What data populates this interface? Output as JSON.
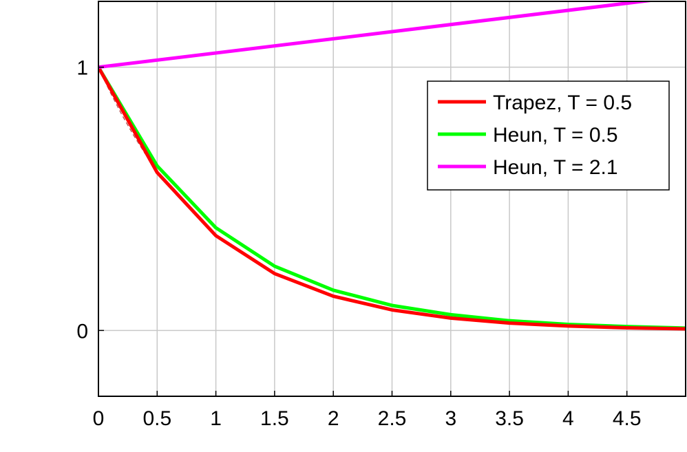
{
  "chart_data": {
    "type": "line",
    "xlabel": "",
    "ylabel": "",
    "xlim": [
      0,
      5
    ],
    "ylim": [
      -0.25,
      1.25
    ],
    "xticks": [
      "0",
      "0.5",
      "1",
      "1.5",
      "2",
      "2.5",
      "3",
      "3.5",
      "4",
      "4.5"
    ],
    "yticks": [
      "0",
      "1"
    ],
    "grid": true,
    "legend_position": "top-right",
    "series": [
      {
        "name": "Trapez, T  =  0.5",
        "color": "#ff0000",
        "x": [
          0,
          0.5,
          1,
          1.5,
          2,
          2.5,
          3,
          3.5,
          4,
          4.5,
          5
        ],
        "y": [
          1.0,
          0.6,
          0.36,
          0.216,
          0.13,
          0.078,
          0.047,
          0.028,
          0.017,
          0.01,
          0.006
        ]
      },
      {
        "name": "Heun, T  =  0.5",
        "color": "#00ff00",
        "x": [
          0,
          0.5,
          1,
          1.5,
          2,
          2.5,
          3,
          3.5,
          4,
          4.5,
          5
        ],
        "y": [
          1.0,
          0.625,
          0.39,
          0.244,
          0.153,
          0.095,
          0.06,
          0.037,
          0.023,
          0.015,
          0.009
        ]
      },
      {
        "name": "Heun, T  =  2.1",
        "color": "#ff00ff",
        "x": [
          0,
          5
        ],
        "y": [
          1.0,
          1.27
        ]
      }
    ],
    "reference": {
      "color": "#bb5555",
      "x": [
        0,
        0.1,
        0.2,
        0.3,
        0.4
      ],
      "y": [
        1.0,
        0.905,
        0.819,
        0.741,
        0.67
      ]
    }
  }
}
